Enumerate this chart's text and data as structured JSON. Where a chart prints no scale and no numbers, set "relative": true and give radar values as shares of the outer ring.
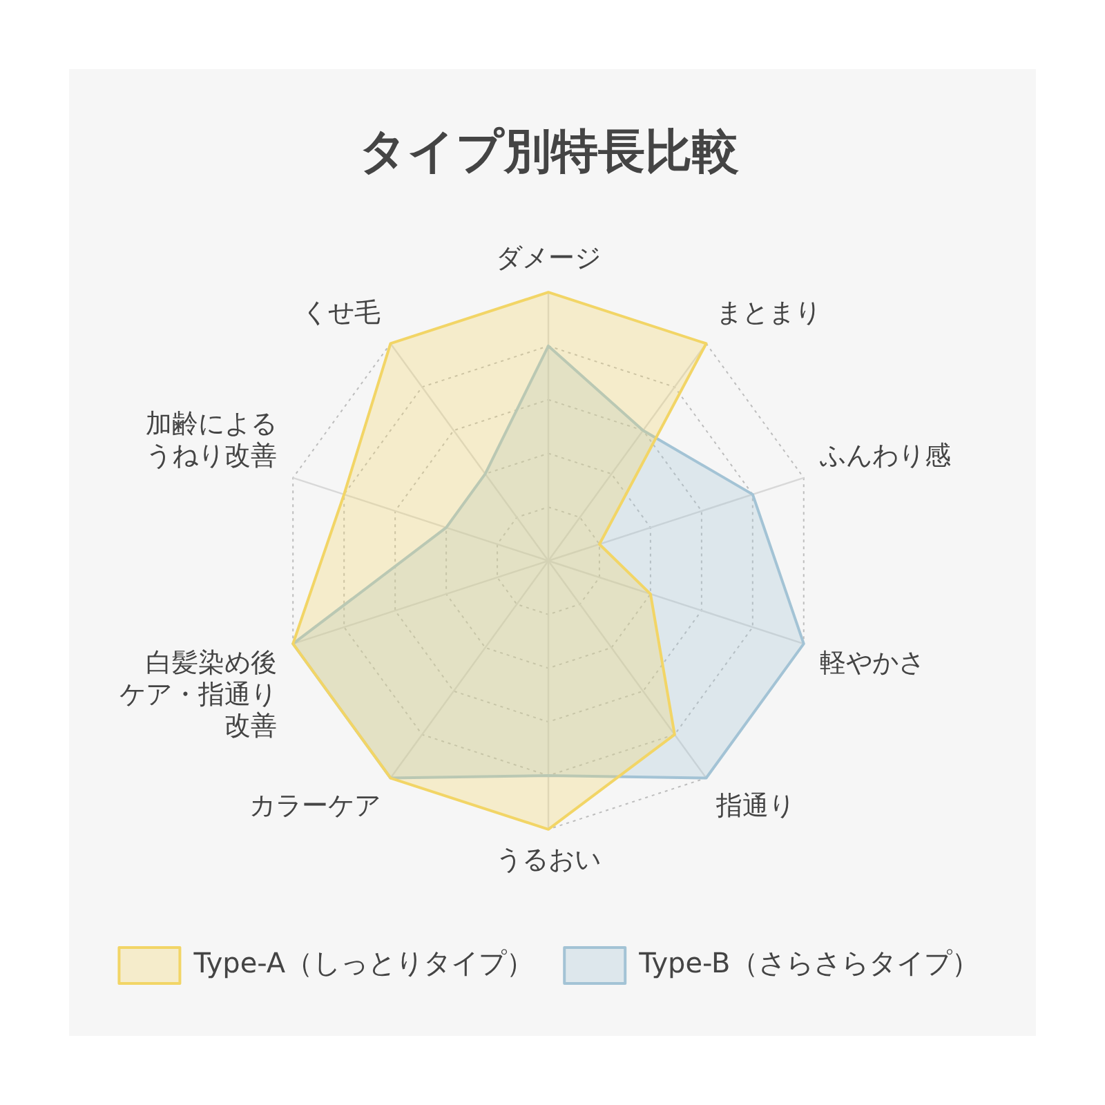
{
  "chart_data": {
    "type": "radar",
    "title": "タイプ別特長比較",
    "categories": [
      "ダメージ",
      "まとまり",
      "ふんわり感",
      "軽やかさ",
      "指通り",
      "うるおい",
      "カラーケア",
      "白髪染め後ケア・指通り改善",
      "加齢によるうねり改善",
      "くせ毛"
    ],
    "relative": true,
    "series": [
      {
        "name": "Type-A（しっとりタイプ）",
        "color": "#f2d566",
        "values": [
          1.0,
          1.0,
          0.2,
          0.4,
          0.8,
          1.0,
          1.0,
          1.0,
          0.8,
          1.0
        ]
      },
      {
        "name": "Type-B（さらさらタイプ）",
        "color": "#a3c3d5",
        "values": [
          0.8,
          0.6,
          0.8,
          1.0,
          1.0,
          0.8,
          1.0,
          1.0,
          0.4,
          0.4
        ]
      }
    ],
    "grid": true,
    "legend": "bottom",
    "marker": "none"
  }
}
